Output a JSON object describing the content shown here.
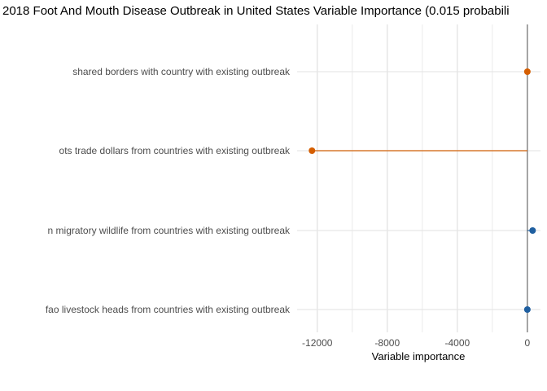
{
  "chart_data": {
    "type": "lollipop",
    "title": "2018 Foot And Mouth Disease Outbreak in United States Variable Importance (0.015 probabili",
    "xlabel": "Variable importance",
    "ylabel": "",
    "xlim": [
      -13150,
      750
    ],
    "xticks": [
      -12000,
      -8000,
      -4000,
      0
    ],
    "xtick_labels": [
      "-12000",
      "-8000",
      "-4000",
      "0"
    ],
    "categories": [
      "shared borders with country with existing outbreak",
      "ots trade dollars from countries with existing outbreak",
      "n migratory wildlife from countries with existing outbreak",
      "fao livestock heads from countries with existing outbreak"
    ],
    "values": [
      0,
      -12300,
      300,
      0
    ],
    "point_colors": [
      "#d55e00",
      "#d55e00",
      "#1f5fa0",
      "#1f5fa0"
    ],
    "grid": true,
    "legend": "none"
  }
}
